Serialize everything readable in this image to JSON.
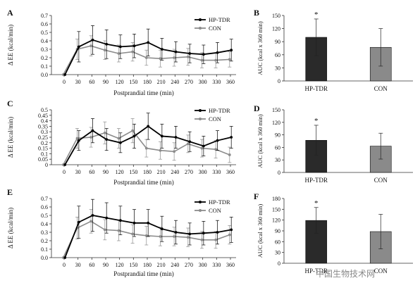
{
  "chart_data": [
    {
      "type": "line",
      "panel_label": "A",
      "ylabel": "Δ EE (kcal/min)",
      "xlabel": "Postprandial time (min)",
      "x": [
        0,
        30,
        60,
        90,
        120,
        150,
        180,
        210,
        240,
        270,
        300,
        330,
        360
      ],
      "ylim": [
        0,
        0.7
      ],
      "yticks": [
        0,
        0.1,
        0.2,
        0.3,
        0.4,
        0.5,
        0.6,
        0.7
      ],
      "ytick_labels": [
        "0.0",
        "0.1",
        "0.2",
        "0.3",
        "0.4",
        "0.5",
        "0.6",
        "0.7"
      ],
      "legend_position": "top-right",
      "series": [
        {
          "name": "HP-TDR",
          "color": "#000000",
          "values": [
            0,
            0.33,
            0.41,
            0.36,
            0.33,
            0.34,
            0.38,
            0.3,
            0.27,
            0.25,
            0.24,
            0.26,
            0.29
          ],
          "error": [
            0,
            0.18,
            0.17,
            0.17,
            0.14,
            0.14,
            0.16,
            0.13,
            0.12,
            0.11,
            0.11,
            0.12,
            0.13
          ]
        },
        {
          "name": "CON",
          "color": "#8c8c8c",
          "values": [
            0,
            0.3,
            0.34,
            0.29,
            0.25,
            0.27,
            0.2,
            0.19,
            0.2,
            0.21,
            0.17,
            0.17,
            0.18
          ],
          "error": [
            0,
            0.12,
            0.12,
            0.11,
            0.1,
            0.11,
            0.09,
            0.1,
            0.1,
            0.1,
            0.09,
            0.09,
            0.09
          ]
        }
      ]
    },
    {
      "type": "bar",
      "panel_label": "B",
      "ylabel": "AUC (kcal x 360 min)",
      "categories": [
        "HP-TDR",
        "CON"
      ],
      "values": [
        100,
        77
      ],
      "error": [
        42,
        43
      ],
      "colors": [
        "#2a2a2a",
        "#8a8a8a"
      ],
      "significance": [
        "*",
        ""
      ],
      "ylim": [
        0,
        150
      ],
      "yticks": [
        0,
        30,
        60,
        90,
        120,
        150
      ]
    },
    {
      "type": "line",
      "panel_label": "C",
      "ylabel": "Δ EE (kcal/min)",
      "xlabel": "Postprandial time (min)",
      "x": [
        0,
        30,
        60,
        90,
        120,
        150,
        180,
        210,
        240,
        270,
        300,
        330,
        360
      ],
      "ylim": [
        0,
        0.5
      ],
      "yticks": [
        0,
        0.05,
        0.1,
        0.15,
        0.2,
        0.25,
        0.3,
        0.35,
        0.4,
        0.45,
        0.5
      ],
      "ytick_labels": [
        "0",
        "0.05",
        "0.1",
        "0.15",
        "0.2",
        "0.25",
        "0.3",
        "0.35",
        "0.4",
        "0.45",
        "0.5"
      ],
      "legend_position": "top-right",
      "series": [
        {
          "name": "HP-TDR",
          "color": "#000000",
          "values": [
            0,
            0.22,
            0.31,
            0.23,
            0.2,
            0.26,
            0.35,
            0.26,
            0.25,
            0.21,
            0.17,
            0.22,
            0.25
          ],
          "error": [
            0,
            0.09,
            0.11,
            0.1,
            0.09,
            0.11,
            0.12,
            0.11,
            0.1,
            0.09,
            0.09,
            0.09,
            0.1
          ]
        },
        {
          "name": "CON",
          "color": "#8c8c8c",
          "values": [
            0,
            0.24,
            0.25,
            0.29,
            0.24,
            0.31,
            0.15,
            0.13,
            0.12,
            0.19,
            0.15,
            0.14,
            0.09
          ],
          "error": [
            0,
            0.09,
            0.09,
            0.1,
            0.09,
            0.11,
            0.08,
            0.08,
            0.08,
            0.08,
            0.08,
            0.08,
            0.07
          ]
        }
      ]
    },
    {
      "type": "bar",
      "panel_label": "D",
      "ylabel": "AUC (kcal x 360 min)",
      "categories": [
        "HP-TDR",
        "CON"
      ],
      "values": [
        77,
        63
      ],
      "error": [
        36,
        31
      ],
      "colors": [
        "#2a2a2a",
        "#8a8a8a"
      ],
      "significance": [
        "*",
        ""
      ],
      "ylim": [
        0,
        150
      ],
      "yticks": [
        0,
        30,
        60,
        90,
        120,
        150
      ]
    },
    {
      "type": "line",
      "panel_label": "E",
      "ylabel": "Δ EE (kcal/min)",
      "xlabel": "Postprandial time (min)",
      "x": [
        0,
        30,
        60,
        90,
        120,
        150,
        180,
        210,
        240,
        270,
        300,
        330,
        360
      ],
      "ylim": [
        0,
        0.7
      ],
      "yticks": [
        0,
        0.1,
        0.2,
        0.3,
        0.4,
        0.5,
        0.6,
        0.7
      ],
      "ytick_labels": [
        "0.0",
        "0.1",
        "0.2",
        "0.3",
        "0.4",
        "0.5",
        "0.6",
        "0.7"
      ],
      "legend_position": "top-right",
      "series": [
        {
          "name": "HP-TDR",
          "color": "#000000",
          "values": [
            0,
            0.42,
            0.5,
            0.47,
            0.44,
            0.41,
            0.41,
            0.34,
            0.3,
            0.28,
            0.29,
            0.3,
            0.33
          ],
          "error": [
            0,
            0.19,
            0.19,
            0.18,
            0.17,
            0.16,
            0.16,
            0.15,
            0.14,
            0.13,
            0.14,
            0.14,
            0.15
          ]
        },
        {
          "name": "CON",
          "color": "#8c8c8c",
          "values": [
            0,
            0.35,
            0.43,
            0.33,
            0.32,
            0.28,
            0.26,
            0.25,
            0.25,
            0.24,
            0.21,
            0.21,
            0.27
          ],
          "error": [
            0,
            0.13,
            0.14,
            0.12,
            0.12,
            0.11,
            0.11,
            0.11,
            0.11,
            0.11,
            0.1,
            0.1,
            0.11
          ]
        }
      ]
    },
    {
      "type": "bar",
      "panel_label": "F",
      "ylabel": "AUC (kcal x 360 min)",
      "categories": [
        "HP-TDR",
        "CON"
      ],
      "values": [
        119,
        88
      ],
      "error": [
        36,
        48
      ],
      "colors": [
        "#2a2a2a",
        "#8a8a8a"
      ],
      "significance": [
        "*",
        ""
      ],
      "ylim": [
        0,
        180
      ],
      "yticks": [
        0,
        30,
        60,
        90,
        120,
        150,
        180
      ]
    }
  ],
  "watermark": {
    "text": "中国生物技术网"
  }
}
